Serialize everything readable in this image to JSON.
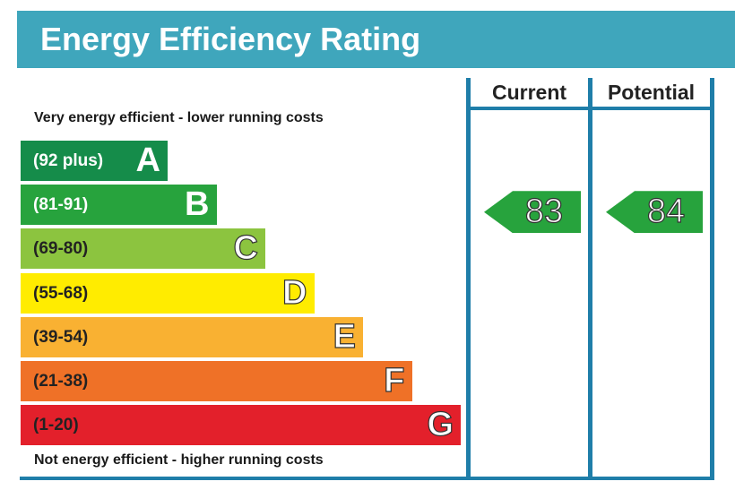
{
  "header": {
    "title": "Energy Efficiency Rating"
  },
  "columns": {
    "current": "Current",
    "potential": "Potential"
  },
  "notes": {
    "top": "Very energy efficient - lower running costs",
    "bottom": "Not energy efficient - higher running costs"
  },
  "chart_data": {
    "type": "bar",
    "categories": [
      "A",
      "B",
      "C",
      "D",
      "E",
      "F",
      "G"
    ],
    "bands": [
      {
        "letter": "A",
        "range": "(92 plus)",
        "color": "#158c4a",
        "text_color": "#ffffff"
      },
      {
        "letter": "B",
        "range": "(81-91)",
        "color": "#27a33d",
        "text_color": "#ffffff"
      },
      {
        "letter": "C",
        "range": "(69-80)",
        "color": "#8cc43f",
        "text_color": "#222222"
      },
      {
        "letter": "D",
        "range": "(55-68)",
        "color": "#ffec00",
        "text_color": "#222222"
      },
      {
        "letter": "E",
        "range": "(39-54)",
        "color": "#f9b132",
        "text_color": "#222222"
      },
      {
        "letter": "F",
        "range": "(21-38)",
        "color": "#ef7127",
        "text_color": "#222222"
      },
      {
        "letter": "G",
        "range": "(1-20)",
        "color": "#e3202b",
        "text_color": "#222222"
      }
    ],
    "current": {
      "value": 83,
      "label": "83",
      "band": "B",
      "color": "#27a33d"
    },
    "potential": {
      "value": 84,
      "label": "84",
      "band": "B",
      "color": "#27a33d"
    }
  }
}
